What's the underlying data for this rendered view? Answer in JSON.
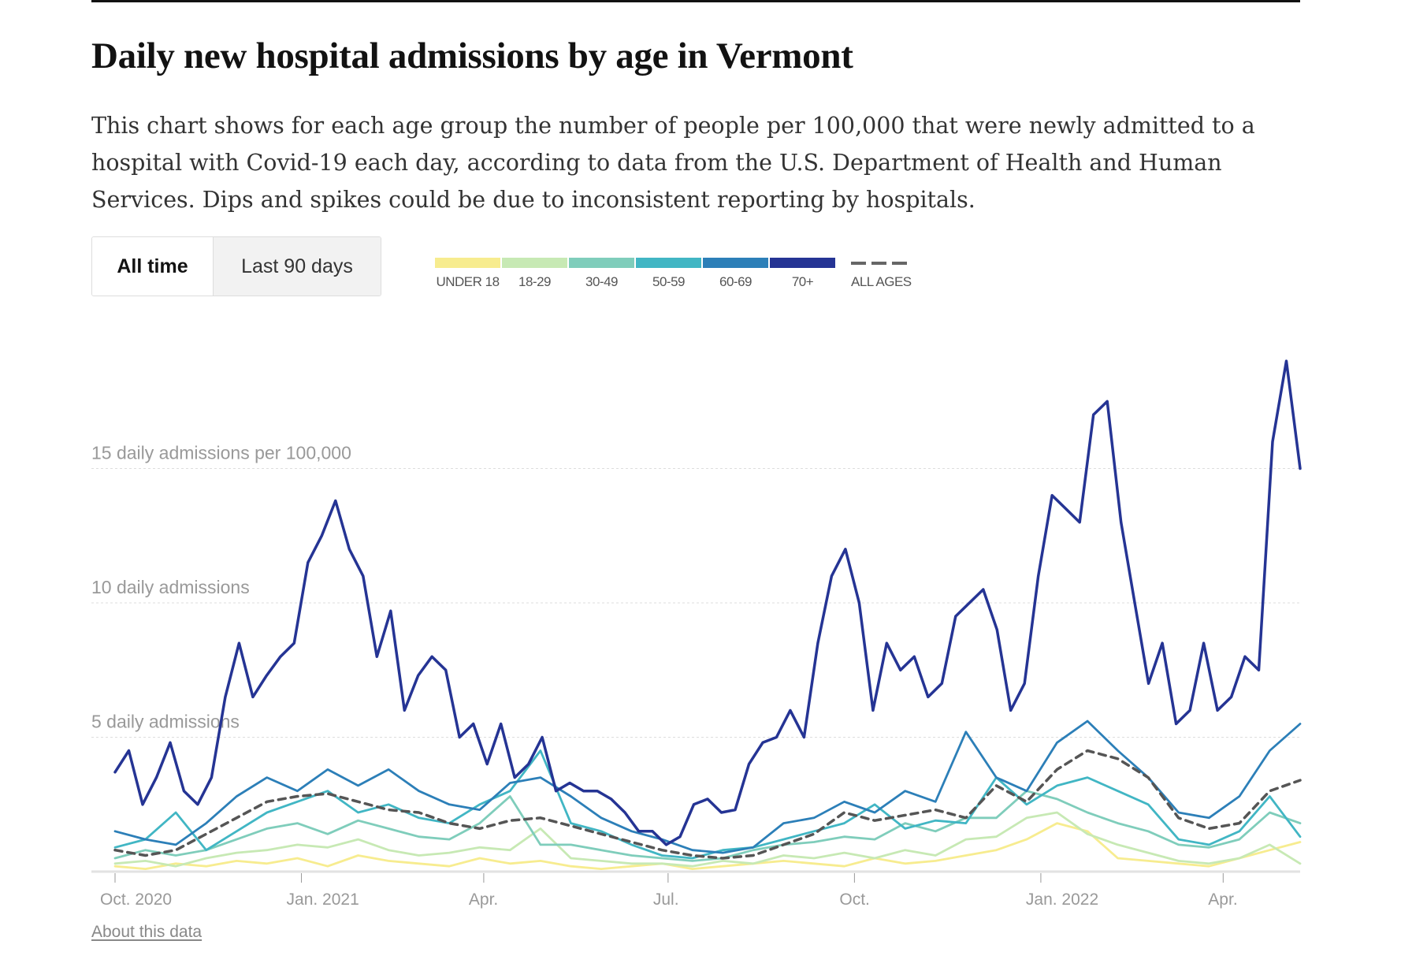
{
  "title": "Daily new hospital admissions by age in Vermont",
  "description_lines": [
    "This chart shows for each age group the number of people per 100,000 that were newly admitted to a",
    "hospital with Covid-19 each day, according to data from the U.S. Department of Health and Human",
    "Services. Dips and spikes could be due to inconsistent reporting by hospitals."
  ],
  "toggle": {
    "all_time": "All time",
    "last_90": "Last 90 days",
    "selected": "All time"
  },
  "about_link": "About this data",
  "chart_data": {
    "type": "line",
    "title": "Daily new hospital admissions by age in Vermont",
    "ylabel": "daily admissions per 100,000",
    "ylim": [
      0,
      20
    ],
    "x_domain_days": [
      0,
      585
    ],
    "x_start": "Oct. 1, 2020",
    "x_end": "May 9, 2022",
    "grid": true,
    "y_gridlines": [
      {
        "value": 5,
        "label": "5 daily admissions"
      },
      {
        "value": 10,
        "label": "10 daily admissions"
      },
      {
        "value": 15,
        "label": "15 daily admissions per 100,000"
      }
    ],
    "x_ticks": [
      {
        "day": 0,
        "label": "Oct. 2020"
      },
      {
        "day": 92,
        "label": "Jan. 2021"
      },
      {
        "day": 182,
        "label": "Apr."
      },
      {
        "day": 273,
        "label": "Jul."
      },
      {
        "day": 365,
        "label": "Oct."
      },
      {
        "day": 457,
        "label": "Jan. 2022"
      },
      {
        "day": 547,
        "label": "Apr."
      }
    ],
    "legend_placement": "top-left",
    "series": [
      {
        "name": "UNDER 18",
        "color": "#f7ec8f",
        "dashed": false,
        "values": [
          0.2,
          0.1,
          0.3,
          0.2,
          0.4,
          0.3,
          0.5,
          0.2,
          0.6,
          0.4,
          0.3,
          0.2,
          0.5,
          0.3,
          0.4,
          0.2,
          0.1,
          0.2,
          0.3,
          0.1,
          0.2,
          0.3,
          0.4,
          0.3,
          0.2,
          0.5,
          0.3,
          0.4,
          0.6,
          0.8,
          1.2,
          1.8,
          1.5,
          0.5,
          0.4,
          0.3,
          0.2,
          0.5,
          0.8,
          1.1
        ]
      },
      {
        "name": "18-29",
        "color": "#c7e9b4",
        "dashed": false,
        "values": [
          0.3,
          0.4,
          0.2,
          0.5,
          0.7,
          0.8,
          1.0,
          0.9,
          1.2,
          0.8,
          0.6,
          0.7,
          0.9,
          0.8,
          1.6,
          0.5,
          0.4,
          0.3,
          0.3,
          0.2,
          0.4,
          0.3,
          0.6,
          0.5,
          0.7,
          0.5,
          0.8,
          0.6,
          1.2,
          1.3,
          2.0,
          2.2,
          1.4,
          1.0,
          0.7,
          0.4,
          0.3,
          0.5,
          1.0,
          0.3
        ]
      },
      {
        "name": "30-49",
        "color": "#7fcdbb",
        "dashed": false,
        "values": [
          0.5,
          0.8,
          0.6,
          0.8,
          1.2,
          1.6,
          1.8,
          1.4,
          1.9,
          1.6,
          1.3,
          1.2,
          1.8,
          2.8,
          1.0,
          1.0,
          0.8,
          0.6,
          0.5,
          0.4,
          0.5,
          0.8,
          1.0,
          1.1,
          1.3,
          1.2,
          1.8,
          1.5,
          2.0,
          2.0,
          3.0,
          2.7,
          2.2,
          1.8,
          1.5,
          1.0,
          0.9,
          1.2,
          2.2,
          1.8
        ]
      },
      {
        "name": "50-59",
        "color": "#41b6c4",
        "dashed": false,
        "values": [
          0.9,
          1.2,
          2.2,
          0.8,
          1.5,
          2.2,
          2.6,
          3.0,
          2.2,
          2.5,
          2.0,
          1.8,
          2.5,
          3.0,
          4.5,
          1.8,
          1.5,
          1.0,
          0.6,
          0.5,
          0.8,
          0.9,
          1.2,
          1.5,
          1.8,
          2.5,
          1.6,
          1.9,
          1.8,
          3.5,
          2.5,
          3.2,
          3.5,
          3.0,
          2.5,
          1.2,
          1.0,
          1.5,
          2.8,
          1.3
        ]
      },
      {
        "name": "60-69",
        "color": "#2c7fb8",
        "dashed": false,
        "values": [
          1.5,
          1.2,
          1.0,
          1.8,
          2.8,
          3.5,
          3.0,
          3.8,
          3.2,
          3.8,
          3.0,
          2.5,
          2.3,
          3.3,
          3.5,
          2.8,
          2.0,
          1.5,
          1.2,
          0.8,
          0.7,
          0.9,
          1.8,
          2.0,
          2.6,
          2.2,
          3.0,
          2.6,
          5.2,
          3.5,
          3.0,
          4.8,
          5.6,
          4.5,
          3.5,
          2.2,
          2.0,
          2.8,
          4.5,
          5.5
        ]
      },
      {
        "name": "70+",
        "color": "#253494",
        "dashed": false,
        "values": [
          3.7,
          4.5,
          2.5,
          3.5,
          4.8,
          3.0,
          2.5,
          3.5,
          6.5,
          8.5,
          6.5,
          7.3,
          8.0,
          8.5,
          11.5,
          12.5,
          13.8,
          12.0,
          11.0,
          8.0,
          9.7,
          6.0,
          7.3,
          8.0,
          7.5,
          5.0,
          5.5,
          4.0,
          5.5,
          3.5,
          4.0,
          5.0,
          3.0,
          3.3,
          3.0,
          3.0,
          2.7,
          2.2,
          1.5,
          1.5,
          1.0,
          1.3,
          2.5,
          2.7,
          2.2,
          2.3,
          4.0,
          4.8,
          5.0,
          6.0,
          5.0,
          8.5,
          11.0,
          12.0,
          10.0,
          6.0,
          8.5,
          7.5,
          8.0,
          6.5,
          7.0,
          9.5,
          10.0,
          10.5,
          9.0,
          6.0,
          7.0,
          11.0,
          14.0,
          13.5,
          13.0,
          17.0,
          17.5,
          13.0,
          10.0,
          7.0,
          8.5,
          5.5,
          6.0,
          8.5,
          6.0,
          6.5,
          8.0,
          7.5,
          16.0,
          19.0,
          15.0
        ]
      },
      {
        "name": "ALL AGES",
        "color": "#555555",
        "dashed": true,
        "values": [
          0.8,
          0.6,
          0.8,
          1.4,
          2.0,
          2.6,
          2.8,
          2.9,
          2.6,
          2.3,
          2.2,
          1.8,
          1.6,
          1.9,
          2.0,
          1.7,
          1.4,
          1.1,
          0.8,
          0.6,
          0.5,
          0.6,
          1.0,
          1.4,
          2.2,
          1.9,
          2.1,
          2.3,
          2.0,
          3.2,
          2.6,
          3.8,
          4.5,
          4.2,
          3.5,
          2.0,
          1.6,
          1.8,
          3.0,
          3.4
        ]
      }
    ]
  }
}
